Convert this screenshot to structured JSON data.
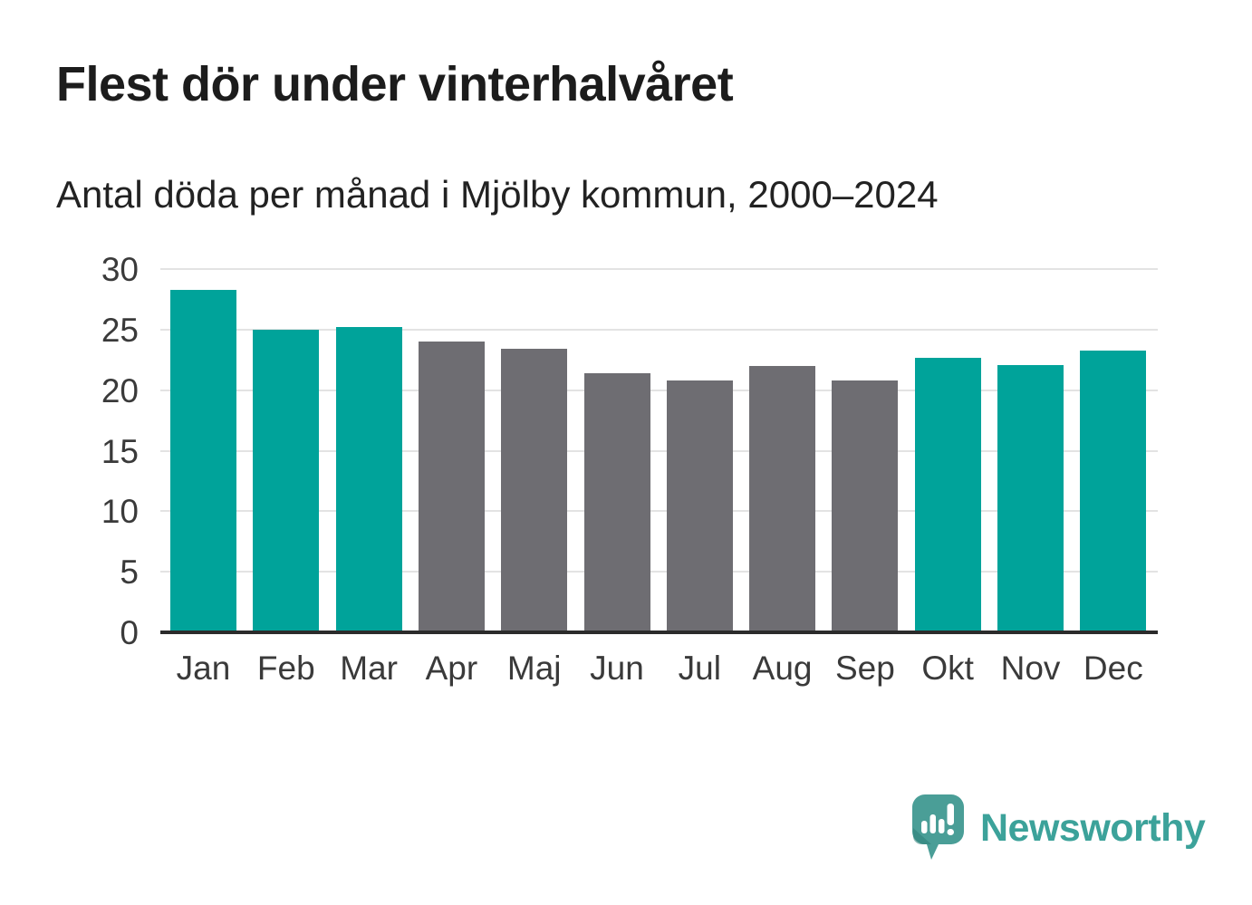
{
  "title": "Flest dör under vinterhalvåret",
  "subtitle": "Antal döda per månad i Mjölby kommun, 2000–2024",
  "colors": {
    "winter": "#00a39a",
    "summer": "#6e6d72",
    "grid": "#e3e3e3",
    "baseline": "#2b2b2b",
    "axis_text": "#3a3a3a",
    "logo_mark": "#4a9e97",
    "logo_text": "#3ca29a"
  },
  "chart_data": {
    "type": "bar",
    "title": "Flest dör under vinterhalvåret",
    "subtitle": "Antal döda per månad i Mjölby kommun, 2000–2024",
    "categories": [
      "Jan",
      "Feb",
      "Mar",
      "Apr",
      "Maj",
      "Jun",
      "Jul",
      "Aug",
      "Sep",
      "Okt",
      "Nov",
      "Dec"
    ],
    "values": [
      28.3,
      25.0,
      25.2,
      24.0,
      23.4,
      21.4,
      20.8,
      22.0,
      20.8,
      22.7,
      22.1,
      23.3
    ],
    "bar_color_keys": [
      "winter",
      "winter",
      "winter",
      "summer",
      "summer",
      "summer",
      "summer",
      "summer",
      "summer",
      "winter",
      "winter",
      "winter"
    ],
    "xlabel": "",
    "ylabel": "",
    "ylim": [
      0,
      30
    ],
    "yticks": [
      0,
      5,
      10,
      15,
      20,
      25,
      30
    ],
    "grid": true,
    "legend": "none"
  },
  "branding": {
    "logo_text": "Newsworthy",
    "logo_icon": "newsworthy-speech-bubble-chart-icon"
  }
}
